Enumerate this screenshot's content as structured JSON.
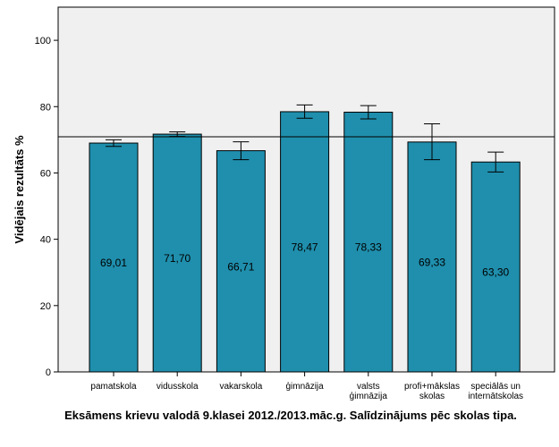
{
  "chart_data": {
    "type": "bar",
    "title": "Eksāmens krievu valodā 9.klasei 2012./2013.māc.g. Salīdzinājums pēc skolas tipa.",
    "ylabel": "Vidējais rezultāts %",
    "xlabel": "",
    "ylim": [
      0,
      110
    ],
    "yticks": [
      0,
      20,
      40,
      60,
      80,
      100
    ],
    "categories": [
      [
        "pamatskola"
      ],
      [
        "vidusskola"
      ],
      [
        "vakarskola"
      ],
      [
        "ģimnāzija"
      ],
      [
        "valsts",
        "ģimnāzija"
      ],
      [
        "profi+mākslas",
        "skolas"
      ],
      [
        "speciālās un",
        "internātskolas"
      ]
    ],
    "values": [
      69.01,
      71.7,
      66.71,
      78.47,
      78.33,
      69.33,
      63.3
    ],
    "value_labels": [
      "69,01",
      "71,70",
      "66,71",
      "78,47",
      "78,33",
      "69,33",
      "63,30"
    ],
    "error_low": [
      68.0,
      71.0,
      64.0,
      76.5,
      76.3,
      64.0,
      60.3
    ],
    "error_high": [
      70.0,
      72.4,
      69.4,
      80.5,
      80.3,
      74.8,
      66.3
    ],
    "reference_line": 70.9,
    "bar_color": "#1f8fad",
    "plot_background": "#f0f0f0",
    "grid": false,
    "legend": "none"
  }
}
